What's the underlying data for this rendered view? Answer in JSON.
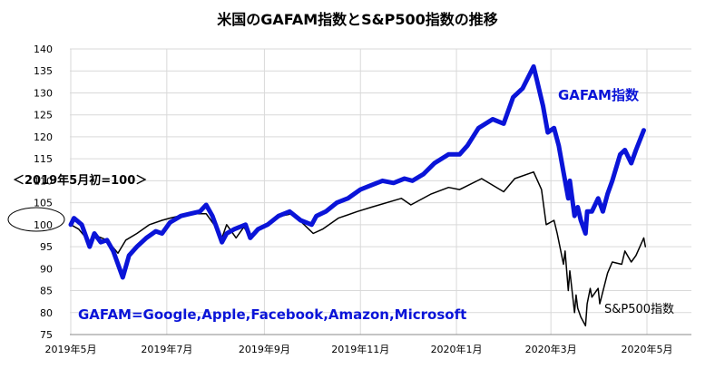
{
  "chart_data": {
    "type": "line",
    "title": "米国のGAFAM指数とS&P500指数の推移",
    "note": "＜2019年5月初=100＞",
    "footnote": "GAFAM=Google,Apple,Facebook,Amazon,Microsoft",
    "xlabel": "",
    "ylabel": "",
    "ylim": [
      75,
      140
    ],
    "yticks": [
      75,
      80,
      85,
      90,
      95,
      100,
      105,
      110,
      115,
      120,
      125,
      130,
      135,
      140
    ],
    "highlighted_ytick": 100,
    "x_tick_labels": [
      "2019年5月",
      "2019年7月",
      "2019年9月",
      "2019年11月",
      "2020年1月",
      "2020年3月",
      "2020年5月"
    ],
    "x_tick_dates": [
      "2019-05-01",
      "2019-07-01",
      "2019-09-01",
      "2019-11-01",
      "2020-01-01",
      "2020-03-01",
      "2020-05-01"
    ],
    "grid": true,
    "series": [
      {
        "name": "GAFAM指数",
        "color": "#0a14d8",
        "points": [
          [
            "2019-05-01",
            100
          ],
          [
            "2019-05-03",
            101.5
          ],
          [
            "2019-05-08",
            100
          ],
          [
            "2019-05-13",
            95
          ],
          [
            "2019-05-16",
            98
          ],
          [
            "2019-05-20",
            96
          ],
          [
            "2019-05-24",
            96.5
          ],
          [
            "2019-05-28",
            94
          ],
          [
            "2019-06-03",
            88
          ],
          [
            "2019-06-07",
            93
          ],
          [
            "2019-06-12",
            95
          ],
          [
            "2019-06-18",
            97
          ],
          [
            "2019-06-24",
            98.5
          ],
          [
            "2019-06-28",
            98
          ],
          [
            "2019-07-03",
            100.5
          ],
          [
            "2019-07-10",
            102
          ],
          [
            "2019-07-16",
            102.5
          ],
          [
            "2019-07-22",
            103
          ],
          [
            "2019-07-26",
            104.5
          ],
          [
            "2019-07-30",
            102
          ],
          [
            "2019-08-02",
            99
          ],
          [
            "2019-08-05",
            96
          ],
          [
            "2019-08-08",
            98
          ],
          [
            "2019-08-13",
            99
          ],
          [
            "2019-08-20",
            100
          ],
          [
            "2019-08-23",
            97
          ],
          [
            "2019-08-28",
            99
          ],
          [
            "2019-09-03",
            100
          ],
          [
            "2019-09-10",
            102
          ],
          [
            "2019-09-17",
            103
          ],
          [
            "2019-09-24",
            101
          ],
          [
            "2019-10-01",
            100
          ],
          [
            "2019-10-04",
            102
          ],
          [
            "2019-10-10",
            103
          ],
          [
            "2019-10-17",
            105
          ],
          [
            "2019-10-24",
            106
          ],
          [
            "2019-11-01",
            108
          ],
          [
            "2019-11-08",
            109
          ],
          [
            "2019-11-15",
            110
          ],
          [
            "2019-11-22",
            109.5
          ],
          [
            "2019-11-29",
            110.5
          ],
          [
            "2019-12-04",
            110
          ],
          [
            "2019-12-11",
            111.5
          ],
          [
            "2019-12-18",
            114
          ],
          [
            "2019-12-27",
            116
          ],
          [
            "2020-01-03",
            116
          ],
          [
            "2020-01-08",
            118
          ],
          [
            "2020-01-15",
            122
          ],
          [
            "2020-01-24",
            124
          ],
          [
            "2020-01-31",
            123
          ],
          [
            "2020-02-06",
            129
          ],
          [
            "2020-02-12",
            131
          ],
          [
            "2020-02-19",
            136
          ],
          [
            "2020-02-21",
            133
          ],
          [
            "2020-02-25",
            127
          ],
          [
            "2020-02-28",
            121
          ],
          [
            "2020-03-03",
            122
          ],
          [
            "2020-03-06",
            118
          ],
          [
            "2020-03-09",
            112
          ],
          [
            "2020-03-12",
            106
          ],
          [
            "2020-03-13",
            110
          ],
          [
            "2020-03-16",
            102
          ],
          [
            "2020-03-18",
            104
          ],
          [
            "2020-03-20",
            101
          ],
          [
            "2020-03-23",
            98
          ],
          [
            "2020-03-24",
            103
          ],
          [
            "2020-03-27",
            103
          ],
          [
            "2020-03-31",
            106
          ],
          [
            "2020-04-03",
            103
          ],
          [
            "2020-04-06",
            107
          ],
          [
            "2020-04-09",
            110
          ],
          [
            "2020-04-14",
            116
          ],
          [
            "2020-04-17",
            117
          ],
          [
            "2020-04-21",
            114
          ],
          [
            "2020-04-24",
            117
          ],
          [
            "2020-04-29",
            121.5
          ]
        ]
      },
      {
        "name": "S&P500指数",
        "color": "#000000",
        "points": [
          [
            "2019-05-01",
            100
          ],
          [
            "2019-05-06",
            99
          ],
          [
            "2019-05-13",
            96
          ],
          [
            "2019-05-17",
            97.5
          ],
          [
            "2019-05-24",
            96.5
          ],
          [
            "2019-05-31",
            93.5
          ],
          [
            "2019-06-05",
            96.5
          ],
          [
            "2019-06-12",
            98
          ],
          [
            "2019-06-20",
            100
          ],
          [
            "2019-06-28",
            101
          ],
          [
            "2019-07-03",
            101.5
          ],
          [
            "2019-07-15",
            102.5
          ],
          [
            "2019-07-26",
            102.5
          ],
          [
            "2019-08-02",
            99
          ],
          [
            "2019-08-05",
            97
          ],
          [
            "2019-08-08",
            100
          ],
          [
            "2019-08-14",
            97
          ],
          [
            "2019-08-19",
            99.5
          ],
          [
            "2019-08-23",
            97
          ],
          [
            "2019-08-30",
            99.5
          ],
          [
            "2019-09-12",
            102
          ],
          [
            "2019-09-19",
            102.5
          ],
          [
            "2019-10-02",
            98
          ],
          [
            "2019-10-08",
            99
          ],
          [
            "2019-10-18",
            101.5
          ],
          [
            "2019-10-30",
            103
          ],
          [
            "2019-11-08",
            104
          ],
          [
            "2019-11-27",
            106
          ],
          [
            "2019-12-03",
            104.5
          ],
          [
            "2019-12-16",
            107
          ],
          [
            "2019-12-27",
            108.5
          ],
          [
            "2020-01-03",
            108
          ],
          [
            "2020-01-17",
            110.5
          ],
          [
            "2020-01-31",
            107.5
          ],
          [
            "2020-02-07",
            110.5
          ],
          [
            "2020-02-19",
            112
          ],
          [
            "2020-02-24",
            108
          ],
          [
            "2020-02-27",
            100
          ],
          [
            "2020-03-03",
            101
          ],
          [
            "2020-03-05",
            98
          ],
          [
            "2020-03-09",
            91
          ],
          [
            "2020-03-10",
            94
          ],
          [
            "2020-03-12",
            85
          ],
          [
            "2020-03-13",
            89.5
          ],
          [
            "2020-03-16",
            80
          ],
          [
            "2020-03-17",
            84
          ],
          [
            "2020-03-18",
            81
          ],
          [
            "2020-03-20",
            79
          ],
          [
            "2020-03-23",
            77
          ],
          [
            "2020-03-24",
            82
          ],
          [
            "2020-03-26",
            85.5
          ],
          [
            "2020-03-27",
            83.5
          ],
          [
            "2020-03-31",
            85.5
          ],
          [
            "2020-04-01",
            82
          ],
          [
            "2020-04-06",
            89
          ],
          [
            "2020-04-09",
            91.5
          ],
          [
            "2020-04-15",
            91
          ],
          [
            "2020-04-17",
            94
          ],
          [
            "2020-04-21",
            91.5
          ],
          [
            "2020-04-24",
            93
          ],
          [
            "2020-04-29",
            97
          ],
          [
            "2020-04-30",
            95
          ]
        ]
      }
    ],
    "series_labels": {
      "gafam": "GAFAM指数",
      "sp500": "S&P500指数"
    }
  }
}
